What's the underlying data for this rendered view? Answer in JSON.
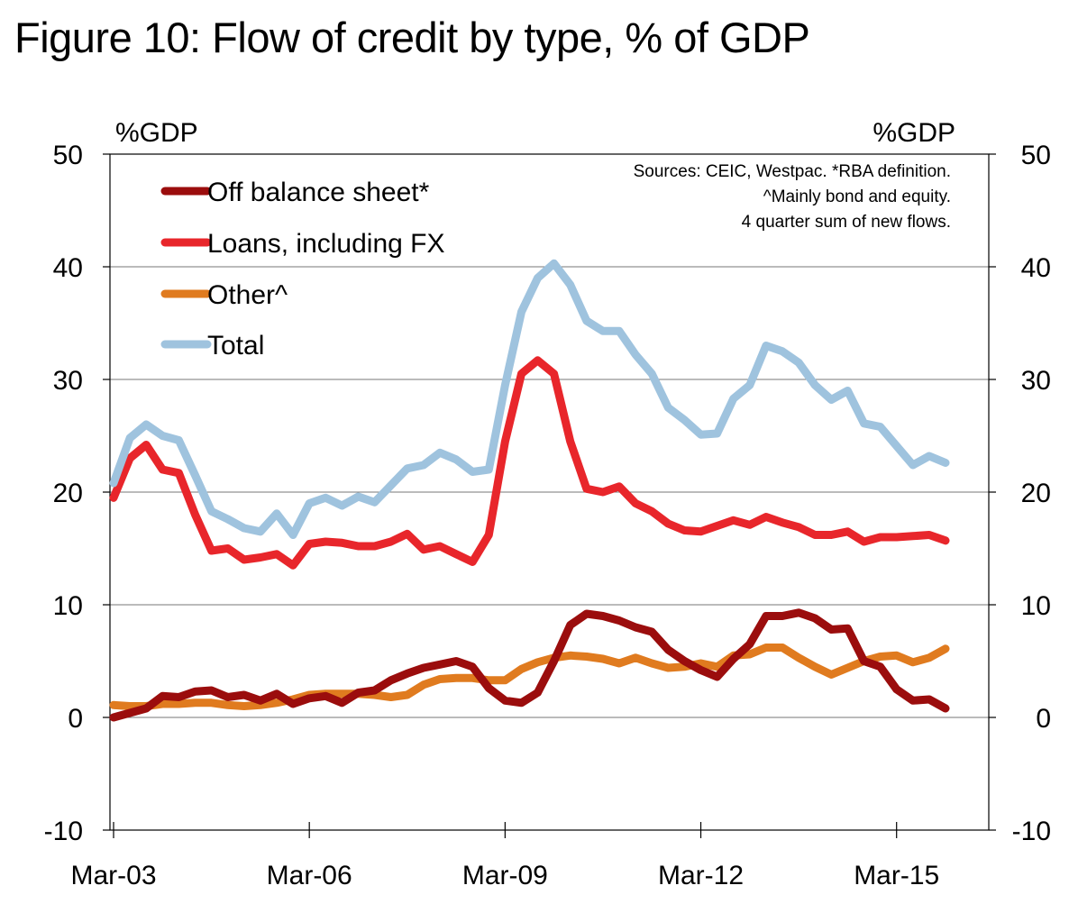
{
  "title": "Figure 10: Flow of credit by type, % of GDP",
  "chart_data": {
    "type": "line",
    "title": "Figure 10: Flow of credit by type, % of GDP",
    "ylabel_left": "%GDP",
    "ylabel_right": "%GDP",
    "ylim": [
      -10,
      50
    ],
    "yticks": [
      "50",
      "40",
      "30",
      "20",
      "10",
      "0",
      "-10"
    ],
    "ytick_values": [
      50,
      40,
      30,
      20,
      10,
      0,
      -10
    ],
    "xtick_labels": [
      "Mar-03",
      "Mar-06",
      "Mar-09",
      "Mar-12",
      "Mar-15"
    ],
    "xtick_index": [
      0,
      12,
      24,
      36,
      48
    ],
    "x_count": 52,
    "legend": [
      "Off balance sheet*",
      "Loans, including FX",
      "Other^",
      "Total"
    ],
    "notes": [
      "Sources: CEIC, Westpac. *RBA definition.",
      "^Mainly bond and equity.",
      "4 quarter sum of new flows."
    ],
    "series": [
      {
        "name": "Off balance sheet*",
        "color": "#9b0d0d",
        "values": [
          0.0,
          0.4,
          0.8,
          1.9,
          1.8,
          2.3,
          2.4,
          1.8,
          2.0,
          1.5,
          2.1,
          1.2,
          1.7,
          1.9,
          1.3,
          2.2,
          2.4,
          3.3,
          3.9,
          4.4,
          4.7,
          5.0,
          4.5,
          2.6,
          1.5,
          1.3,
          2.2,
          5.0,
          8.2,
          9.2,
          9.0,
          8.6,
          8.0,
          7.6,
          6.0,
          5.0,
          4.2,
          3.6,
          5.2,
          6.5,
          9.0,
          9.0,
          9.3,
          8.8,
          7.8,
          7.9,
          5.0,
          4.5,
          2.5,
          1.5,
          1.6,
          0.8
        ]
      },
      {
        "name": "Loans, including FX",
        "color": "#e8262b",
        "values": [
          19.5,
          23.0,
          24.2,
          22.0,
          21.7,
          18.0,
          14.8,
          15.0,
          14.0,
          14.2,
          14.5,
          13.5,
          15.4,
          15.6,
          15.5,
          15.2,
          15.2,
          15.6,
          16.3,
          14.9,
          15.2,
          14.5,
          13.8,
          16.2,
          24.5,
          30.5,
          31.7,
          30.5,
          24.5,
          20.3,
          20.0,
          20.5,
          19.0,
          18.3,
          17.2,
          16.6,
          16.5,
          17.0,
          17.5,
          17.1,
          17.8,
          17.3,
          16.9,
          16.2,
          16.2,
          16.5,
          15.6,
          16.0,
          16.0,
          16.1,
          16.2,
          15.7
        ]
      },
      {
        "name": "Other^",
        "color": "#e07b1f",
        "values": [
          1.1,
          1.0,
          1.0,
          1.2,
          1.2,
          1.3,
          1.3,
          1.1,
          1.0,
          1.1,
          1.3,
          1.6,
          2.0,
          2.1,
          2.1,
          2.1,
          2.0,
          1.8,
          2.0,
          2.9,
          3.4,
          3.5,
          3.5,
          3.3,
          3.3,
          4.3,
          4.9,
          5.3,
          5.5,
          5.4,
          5.2,
          4.8,
          5.3,
          4.8,
          4.4,
          4.5,
          4.8,
          4.5,
          5.5,
          5.6,
          6.2,
          6.2,
          5.3,
          4.5,
          3.8,
          4.4,
          5.0,
          5.4,
          5.5,
          4.9,
          5.3,
          6.1
        ]
      },
      {
        "name": "Total",
        "color": "#9fc3de",
        "values": [
          20.8,
          24.8,
          26.0,
          25.0,
          24.6,
          21.5,
          18.3,
          17.6,
          16.8,
          16.5,
          18.1,
          16.2,
          19.0,
          19.5,
          18.8,
          19.6,
          19.1,
          20.6,
          22.1,
          22.4,
          23.5,
          22.9,
          21.8,
          22.0,
          29.5,
          36.0,
          39.0,
          40.3,
          38.4,
          35.2,
          34.3,
          34.3,
          32.2,
          30.5,
          27.5,
          26.4,
          25.1,
          25.2,
          28.3,
          29.5,
          33.0,
          32.5,
          31.5,
          29.5,
          28.2,
          29.0,
          26.1,
          25.8,
          24.1,
          22.4,
          23.2,
          22.6
        ]
      }
    ]
  }
}
